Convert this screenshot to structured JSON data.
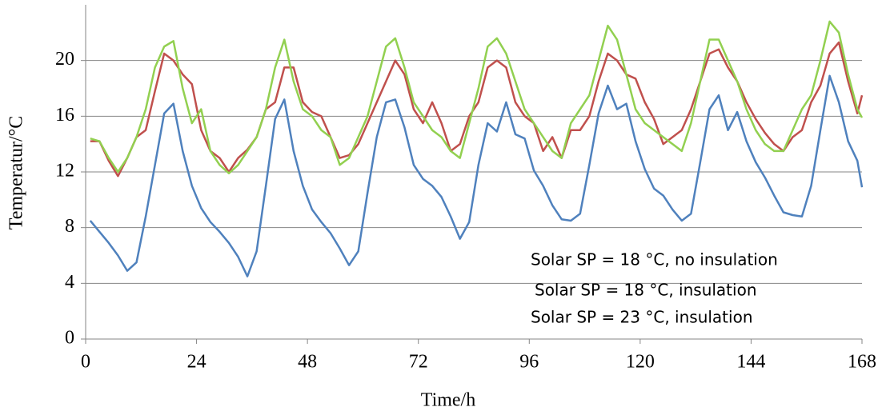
{
  "chart_data": {
    "type": "line",
    "x_label": "Time/h",
    "y_label": "Temperatur/°C",
    "xlim": [
      0,
      168
    ],
    "xticks": [
      0,
      24,
      48,
      72,
      96,
      120,
      144,
      168
    ],
    "ylim": [
      0,
      24
    ],
    "yticks": [
      0,
      4,
      8,
      12,
      16,
      20
    ],
    "grid": true,
    "x": [
      1,
      3,
      5,
      7,
      9,
      11,
      13,
      15,
      17,
      19,
      21,
      23,
      25,
      27,
      29,
      31,
      33,
      35,
      37,
      39,
      41,
      43,
      45,
      47,
      49,
      51,
      53,
      55,
      57,
      59,
      61,
      63,
      65,
      67,
      69,
      71,
      73,
      75,
      77,
      79,
      81,
      83,
      85,
      87,
      89,
      91,
      93,
      95,
      97,
      99,
      101,
      103,
      105,
      107,
      109,
      111,
      113,
      115,
      117,
      119,
      121,
      123,
      125,
      127,
      129,
      131,
      133,
      135,
      137,
      139,
      141,
      143,
      145,
      147,
      149,
      151,
      153,
      155,
      157,
      159,
      161,
      163,
      165,
      167,
      168
    ],
    "series": [
      {
        "name": "Solar SP = 18 °C, no insulation",
        "color": "#4f81bd",
        "values": [
          8.5,
          7.7,
          6.9,
          6.0,
          4.9,
          5.5,
          8.8,
          12.5,
          16.2,
          16.9,
          13.5,
          11.0,
          9.4,
          8.4,
          7.7,
          6.9,
          5.9,
          4.5,
          6.3,
          11.0,
          15.8,
          17.2,
          13.5,
          11.0,
          9.3,
          8.4,
          7.6,
          6.5,
          5.3,
          6.3,
          10.5,
          14.5,
          17.0,
          17.2,
          15.2,
          12.5,
          11.5,
          11.0,
          10.2,
          8.8,
          7.2,
          8.4,
          12.5,
          15.5,
          14.9,
          17.0,
          14.7,
          14.4,
          12.1,
          11.0,
          9.6,
          8.6,
          8.5,
          9.0,
          12.5,
          16.2,
          18.2,
          16.5,
          16.9,
          14.2,
          12.2,
          10.8,
          10.3,
          9.3,
          8.5,
          9.0,
          12.7,
          16.5,
          17.5,
          15.0,
          16.3,
          14.2,
          12.7,
          11.6,
          10.3,
          9.1,
          8.9,
          8.8,
          11.0,
          15.0,
          18.9,
          17.0,
          14.2,
          12.8,
          10.9
        ]
      },
      {
        "name": "Solar SP = 18 °C, insulation",
        "color": "#c0504d",
        "values": [
          14.2,
          14.2,
          12.8,
          11.7,
          13.0,
          14.5,
          15.0,
          17.8,
          20.5,
          20.0,
          19.0,
          18.3,
          15.0,
          13.5,
          13.0,
          12.0,
          13.0,
          13.6,
          14.5,
          16.5,
          17.0,
          19.5,
          19.5,
          17.0,
          16.3,
          16.0,
          14.5,
          13.0,
          13.2,
          14.0,
          15.5,
          17.0,
          18.5,
          20.0,
          19.0,
          16.5,
          15.5,
          17.0,
          15.5,
          13.5,
          14.0,
          16.0,
          17.0,
          19.5,
          20.0,
          19.5,
          17.0,
          16.0,
          15.5,
          13.5,
          14.5,
          13.0,
          15.0,
          15.0,
          16.0,
          18.5,
          20.5,
          20.0,
          19.0,
          18.7,
          17.0,
          15.8,
          14.0,
          14.5,
          15.0,
          16.5,
          18.5,
          20.5,
          20.8,
          19.5,
          18.5,
          17.0,
          15.8,
          14.8,
          14.0,
          13.5,
          14.5,
          15.0,
          17.0,
          18.2,
          20.5,
          21.3,
          18.5,
          16.2,
          17.5
        ]
      },
      {
        "name": "Solar SP = 23 °C, insulation",
        "color": "#92d050",
        "values": [
          14.4,
          14.2,
          13.0,
          12.0,
          13.0,
          14.5,
          16.5,
          19.5,
          21.0,
          21.4,
          18.0,
          15.5,
          16.5,
          13.5,
          12.5,
          11.9,
          12.5,
          13.5,
          14.5,
          16.5,
          19.5,
          21.5,
          18.5,
          16.5,
          16.0,
          15.0,
          14.5,
          12.5,
          13.0,
          14.5,
          16.0,
          18.5,
          21.0,
          21.6,
          19.5,
          17.0,
          16.0,
          15.0,
          14.5,
          13.5,
          13.0,
          15.5,
          18.0,
          21.0,
          21.6,
          20.5,
          18.5,
          16.5,
          15.5,
          14.5,
          13.5,
          13.0,
          15.5,
          16.5,
          17.5,
          20.0,
          22.5,
          21.5,
          19.0,
          16.5,
          15.5,
          15.0,
          14.5,
          14.0,
          13.5,
          15.5,
          18.5,
          21.5,
          21.5,
          20.0,
          18.5,
          16.5,
          15.0,
          14.0,
          13.5,
          13.5,
          15.0,
          16.5,
          17.5,
          20.0,
          22.8,
          22.0,
          19.0,
          16.5,
          15.9
        ]
      }
    ]
  }
}
